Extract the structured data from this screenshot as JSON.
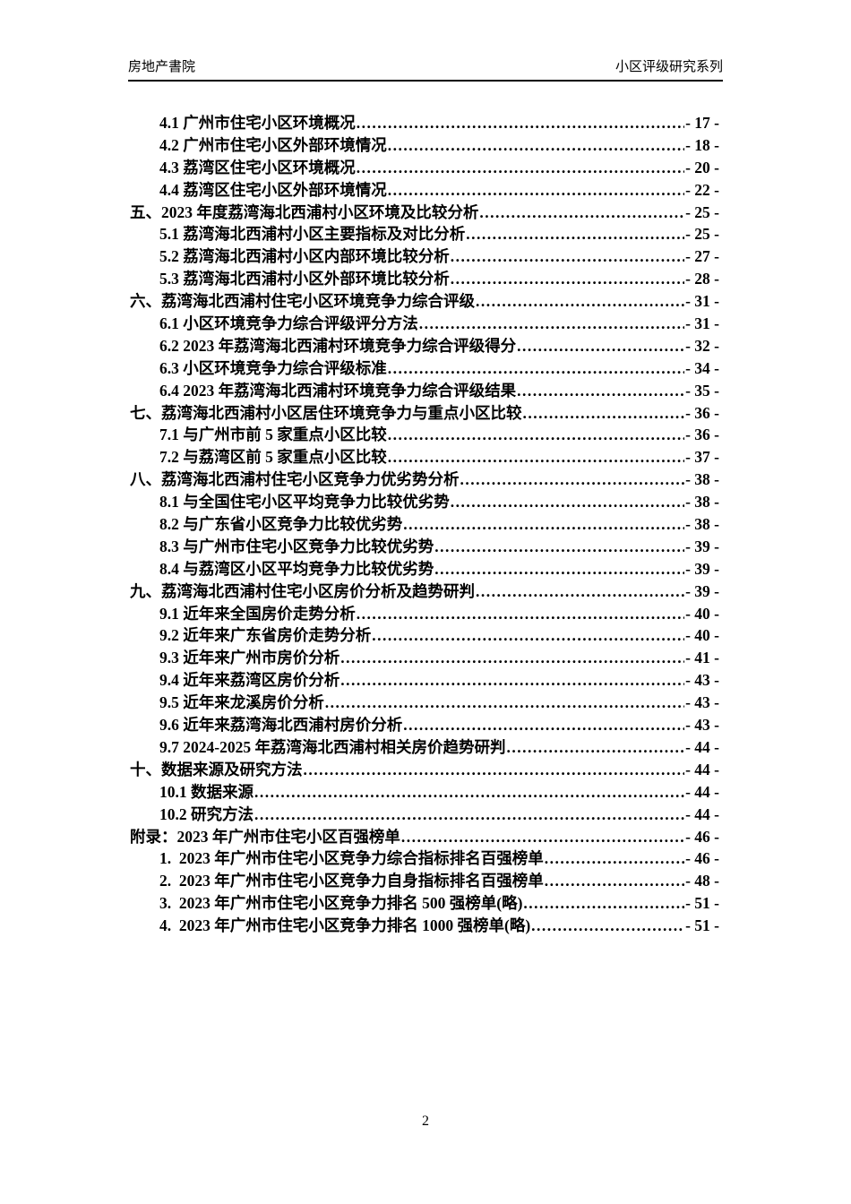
{
  "header": {
    "left": "房地产書院",
    "right": "小区评级研究系列"
  },
  "toc": {
    "entries": [
      {
        "level": 1,
        "title": "4.1 广州市住宅小区环境概况",
        "page": "- 17 -"
      },
      {
        "level": 1,
        "title": "4.2 广州市住宅小区外部环境情况",
        "page": "- 18 -"
      },
      {
        "level": 1,
        "title": "4.3 荔湾区住宅小区环境概况",
        "page": "- 20 -"
      },
      {
        "level": 1,
        "title": "4.4 荔湾区住宅小区外部环境情况",
        "page": "- 22 -"
      },
      {
        "level": 0,
        "title": "五、2023 年度荔湾海北西浦村小区环境及比较分析",
        "page": "- 25 -"
      },
      {
        "level": 1,
        "title": "5.1 荔湾海北西浦村小区主要指标及对比分析",
        "page": "- 25 -"
      },
      {
        "level": 1,
        "title": "5.2 荔湾海北西浦村小区内部环境比较分析",
        "page": "- 27 -"
      },
      {
        "level": 1,
        "title": "5.3 荔湾海北西浦村小区外部环境比较分析",
        "page": "- 28 -"
      },
      {
        "level": 0,
        "title": "六、荔湾海北西浦村住宅小区环境竞争力综合评级",
        "page": "- 31 -"
      },
      {
        "level": 1,
        "title": "6.1 小区环境竞争力综合评级评分方法",
        "page": "- 31 -"
      },
      {
        "level": 1,
        "title": "6.2 2023 年荔湾海北西浦村环境竞争力综合评级得分",
        "page": "- 32 -"
      },
      {
        "level": 1,
        "title": "6.3 小区环境竞争力综合评级标准",
        "page": "- 34 -"
      },
      {
        "level": 1,
        "title": "6.4 2023 年荔湾海北西浦村环境竞争力综合评级结果",
        "page": "- 35 -"
      },
      {
        "level": 0,
        "title": "七、荔湾海北西浦村小区居住环境竞争力与重点小区比较",
        "page": "- 36 -"
      },
      {
        "level": 1,
        "title": "7.1 与广州市前 5 家重点小区比较",
        "page": "- 36 -"
      },
      {
        "level": 1,
        "title": "7.2 与荔湾区前 5 家重点小区比较",
        "page": "- 37 -"
      },
      {
        "level": 0,
        "title": "八、荔湾海北西浦村住宅小区竞争力优劣势分析",
        "page": "- 38 -"
      },
      {
        "level": 1,
        "title": "8.1 与全国住宅小区平均竞争力比较优劣势",
        "page": "- 38 -"
      },
      {
        "level": 1,
        "title": "8.2 与广东省小区竞争力比较优劣势",
        "page": "- 38 -"
      },
      {
        "level": 1,
        "title": "8.3 与广州市住宅小区竞争力比较优劣势",
        "page": "- 39 -"
      },
      {
        "level": 1,
        "title": "8.4 与荔湾区小区平均竞争力比较优劣势",
        "page": "- 39 -"
      },
      {
        "level": 0,
        "title": "九、荔湾海北西浦村住宅小区房价分析及趋势研判",
        "page": "- 39 -"
      },
      {
        "level": 1,
        "title": "9.1 近年来全国房价走势分析",
        "page": "- 40 -"
      },
      {
        "level": 1,
        "title": "9.2 近年来广东省房价走势分析",
        "page": "- 40 -"
      },
      {
        "level": 1,
        "title": "9.3 近年来广州市房价分析",
        "page": "- 41 -"
      },
      {
        "level": 1,
        "title": "9.4 近年来荔湾区房价分析",
        "page": "- 43 -"
      },
      {
        "level": 1,
        "title": "9.5 近年来龙溪房价分析",
        "page": "- 43 -"
      },
      {
        "level": 1,
        "title": "9.6 近年来荔湾海北西浦村房价分析",
        "page": "- 43 -"
      },
      {
        "level": 1,
        "title": "9.7 2024-2025 年荔湾海北西浦村相关房价趋势研判",
        "page": "- 44 -"
      },
      {
        "level": 0,
        "title": "十、数据来源及研究方法",
        "page": "- 44 -"
      },
      {
        "level": 1,
        "title": "10.1 数据来源",
        "page": "- 44 -"
      },
      {
        "level": 1,
        "title": "10.2 研究方法",
        "page": "- 44 -"
      },
      {
        "level": 0,
        "title": "附录：2023 年广州市住宅小区百强榜单",
        "page": "- 46 -"
      },
      {
        "level": 1,
        "title": "1.  2023 年广州市住宅小区竞争力综合指标排名百强榜单",
        "page": "- 46 -"
      },
      {
        "level": 1,
        "title": "2.  2023 年广州市住宅小区竞争力自身指标排名百强榜单",
        "page": "- 48 -"
      },
      {
        "level": 1,
        "title": "3.  2023 年广州市住宅小区竞争力排名 500 强榜单(略)",
        "page": "- 51 -"
      },
      {
        "level": 1,
        "title": "4.  2023 年广州市住宅小区竞争力排名 1000 强榜单(略)",
        "page": "- 51 -"
      }
    ]
  },
  "footer": {
    "page_number": "2"
  }
}
